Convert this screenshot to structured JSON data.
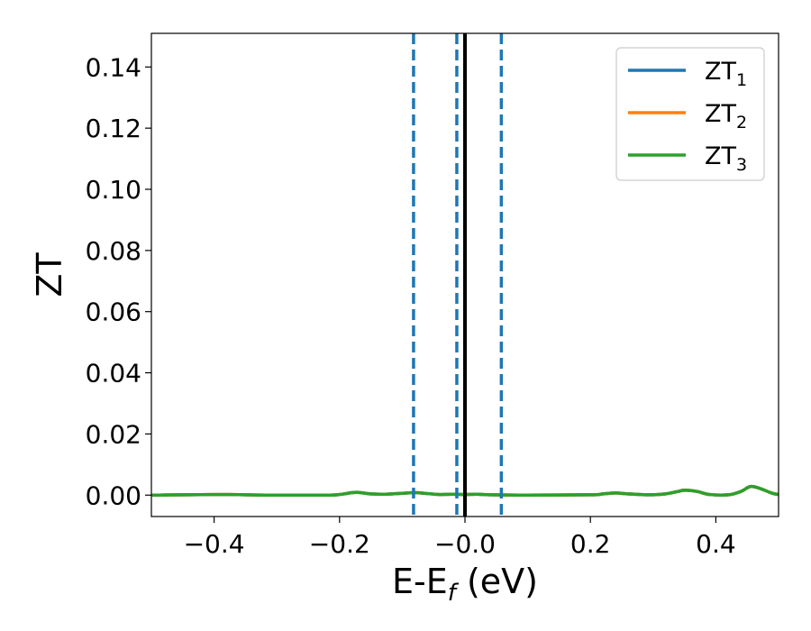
{
  "chart_data": {
    "type": "line",
    "xlabel": "E-E",
    "xlabel_sub": "f",
    "xlabel_unit": " (eV)",
    "ylabel": "ZT",
    "xlim": [
      -0.5,
      0.5
    ],
    "ylim": [
      -0.007,
      0.151
    ],
    "xticks": [
      -0.4,
      -0.2,
      0.0,
      0.2,
      0.4
    ],
    "xtick_labels": [
      "−0.4",
      "−0.2",
      "−0.0",
      "0.2",
      "0.4"
    ],
    "yticks": [
      0.0,
      0.02,
      0.04,
      0.06,
      0.08,
      0.1,
      0.12,
      0.14
    ],
    "ytick_labels": [
      "0.00",
      "0.02",
      "0.04",
      "0.06",
      "0.08",
      "0.10",
      "0.12",
      "0.14"
    ],
    "grid": false,
    "legend_position": "top-right",
    "series": [
      {
        "name": "ZT",
        "sub": "1",
        "color": "#1f77b4",
        "x": [
          -0.5,
          -0.4,
          -0.3,
          -0.22,
          -0.2,
          -0.18,
          -0.17,
          -0.15,
          -0.13,
          -0.1,
          -0.08,
          -0.06,
          -0.04,
          -0.02,
          0.0,
          0.02,
          0.04,
          0.1,
          0.2,
          0.22,
          0.24,
          0.26,
          0.28,
          0.3,
          0.32,
          0.34,
          0.35,
          0.37,
          0.39,
          0.42,
          0.44,
          0.455,
          0.47,
          0.49,
          0.5
        ],
        "y": [
          0.0,
          0.0002,
          0.0,
          0.0,
          0.0002,
          0.0008,
          0.0009,
          0.0004,
          0.0003,
          0.0006,
          0.0008,
          0.0005,
          0.0002,
          0.0003,
          0.0002,
          0.0003,
          0.0001,
          0.0,
          0.0001,
          0.0004,
          0.0007,
          0.0004,
          0.0002,
          0.0001,
          0.0004,
          0.0012,
          0.0016,
          0.0012,
          0.0002,
          0.0001,
          0.0012,
          0.0028,
          0.0022,
          0.0006,
          0.0002
        ]
      },
      {
        "name": "ZT",
        "sub": "2",
        "color": "#ff7f0e",
        "x": [
          -0.5,
          -0.4,
          -0.3,
          -0.22,
          -0.2,
          -0.18,
          -0.17,
          -0.15,
          -0.13,
          -0.1,
          -0.08,
          -0.06,
          -0.04,
          -0.02,
          0.0,
          0.02,
          0.04,
          0.1,
          0.2,
          0.22,
          0.24,
          0.26,
          0.28,
          0.3,
          0.32,
          0.34,
          0.35,
          0.37,
          0.39,
          0.42,
          0.44,
          0.455,
          0.47,
          0.49,
          0.5
        ],
        "y": [
          0.0,
          0.0002,
          0.0,
          0.0,
          0.0002,
          0.0008,
          0.0009,
          0.0004,
          0.0003,
          0.0006,
          0.0008,
          0.0005,
          0.0002,
          0.0003,
          0.0002,
          0.0003,
          0.0001,
          0.0,
          0.0001,
          0.0004,
          0.0007,
          0.0004,
          0.0002,
          0.0001,
          0.0004,
          0.0012,
          0.0016,
          0.0012,
          0.0002,
          0.0001,
          0.0012,
          0.0028,
          0.0022,
          0.0006,
          0.0002
        ]
      },
      {
        "name": "ZT",
        "sub": "3",
        "color": "#2ca02c",
        "x": [
          -0.5,
          -0.4,
          -0.3,
          -0.22,
          -0.2,
          -0.18,
          -0.17,
          -0.15,
          -0.13,
          -0.1,
          -0.08,
          -0.06,
          -0.04,
          -0.02,
          0.0,
          0.02,
          0.04,
          0.1,
          0.2,
          0.22,
          0.24,
          0.26,
          0.28,
          0.3,
          0.32,
          0.34,
          0.35,
          0.37,
          0.39,
          0.42,
          0.44,
          0.455,
          0.47,
          0.49,
          0.5
        ],
        "y": [
          0.0,
          0.0002,
          0.0,
          0.0,
          0.0002,
          0.0008,
          0.0009,
          0.0004,
          0.0003,
          0.0006,
          0.0008,
          0.0005,
          0.0002,
          0.0003,
          0.0002,
          0.0003,
          0.0001,
          0.0,
          0.0001,
          0.0004,
          0.0007,
          0.0004,
          0.0002,
          0.0001,
          0.0004,
          0.0012,
          0.0016,
          0.0012,
          0.0002,
          0.0001,
          0.0012,
          0.0028,
          0.0022,
          0.0006,
          0.0002
        ]
      }
    ],
    "vlines": [
      {
        "x": 0.0,
        "style": "solid",
        "color": "#000000"
      },
      {
        "x": -0.082,
        "style": "dashed",
        "color": "#1f77b4"
      },
      {
        "x": -0.013,
        "style": "dashed",
        "color": "#1f77b4"
      },
      {
        "x": 0.058,
        "style": "dashed",
        "color": "#1f77b4"
      }
    ]
  }
}
